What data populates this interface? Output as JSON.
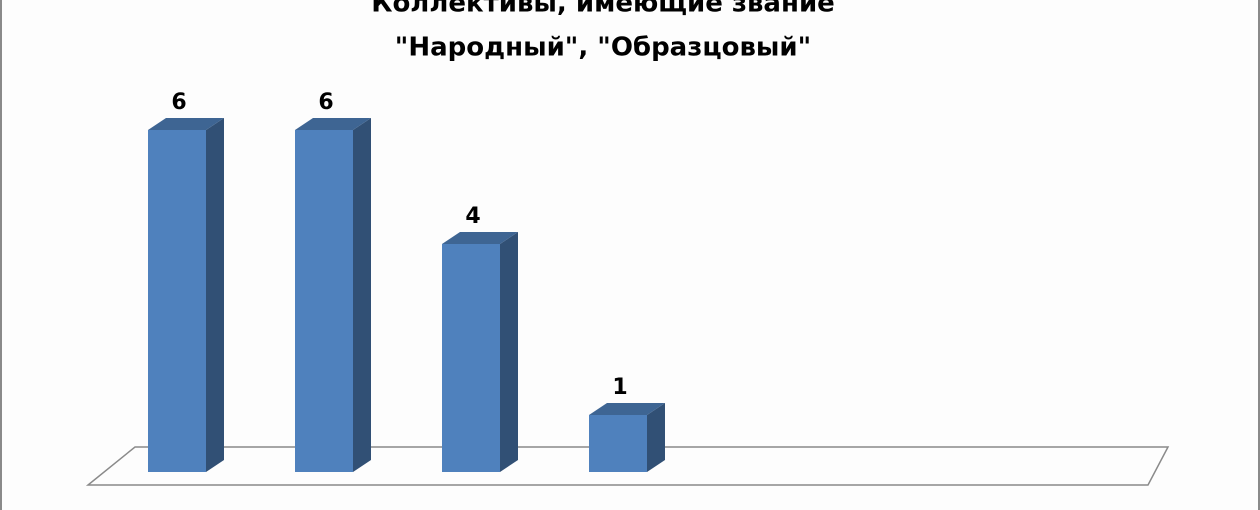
{
  "chart_data": {
    "type": "bar3d",
    "title": [
      "Коллективы, имеющие звание",
      "\"Народный\", \"Образцовый\""
    ],
    "categories": [
      null,
      null,
      null,
      null,
      null,
      null,
      null
    ],
    "values": [
      6,
      6,
      4,
      1,
      null,
      null,
      null
    ],
    "color": "#4f81bd",
    "ylim": [
      0,
      6
    ]
  }
}
